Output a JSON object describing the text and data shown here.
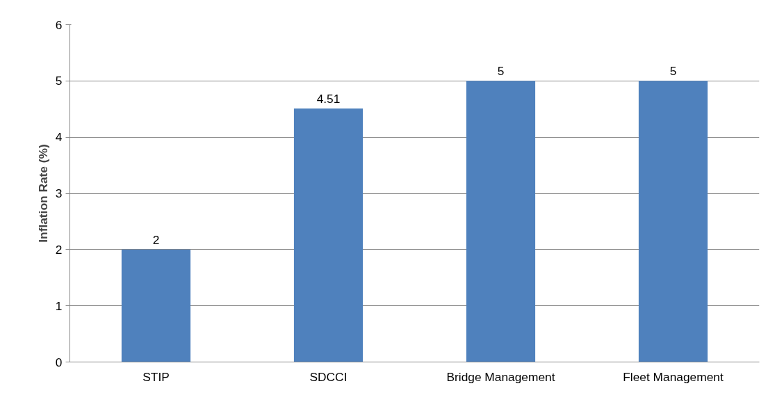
{
  "chart_data": {
    "type": "bar",
    "ylabel": "Inflation Rate (%)",
    "categories": [
      "STIP",
      "SDCCI",
      "Bridge Management",
      "Fleet Management"
    ],
    "values": [
      2,
      4.51,
      5,
      5
    ],
    "color": "#4f81bd",
    "ylim": [
      0,
      6
    ],
    "yticks": [
      0,
      1,
      2,
      3,
      4,
      5,
      6
    ],
    "grid": "y",
    "data_labels": true
  }
}
